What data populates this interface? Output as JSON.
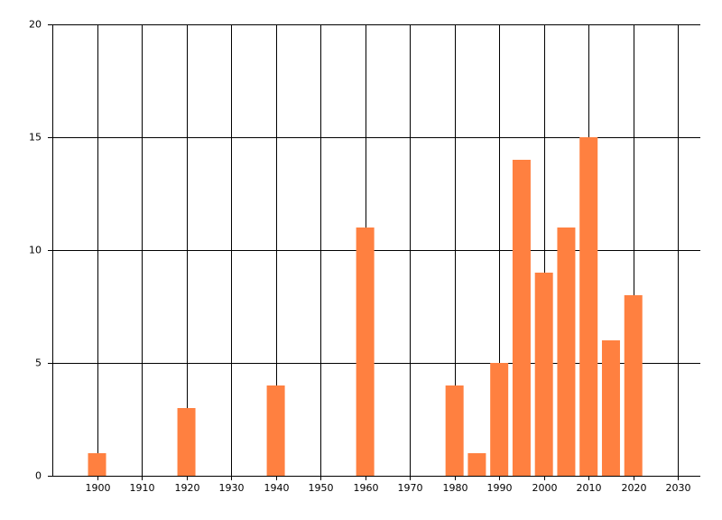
{
  "chart_data": {
    "type": "bar",
    "x": [
      1900,
      1920,
      1940,
      1960,
      1980,
      1985,
      1990,
      1995,
      2000,
      2005,
      2010,
      2015,
      2020
    ],
    "values": [
      1,
      3,
      4,
      11,
      4,
      1,
      5,
      14,
      9,
      11,
      15,
      6,
      8
    ],
    "color": "#ff8040",
    "xlim": [
      1890,
      2035
    ],
    "xticks": [
      1900,
      1910,
      1920,
      1930,
      1940,
      1950,
      1960,
      1970,
      1980,
      1990,
      2000,
      2010,
      2020,
      2030
    ],
    "ylim": [
      0,
      20
    ],
    "yticks": [
      0,
      5,
      10,
      15,
      20
    ],
    "grid": true
  }
}
